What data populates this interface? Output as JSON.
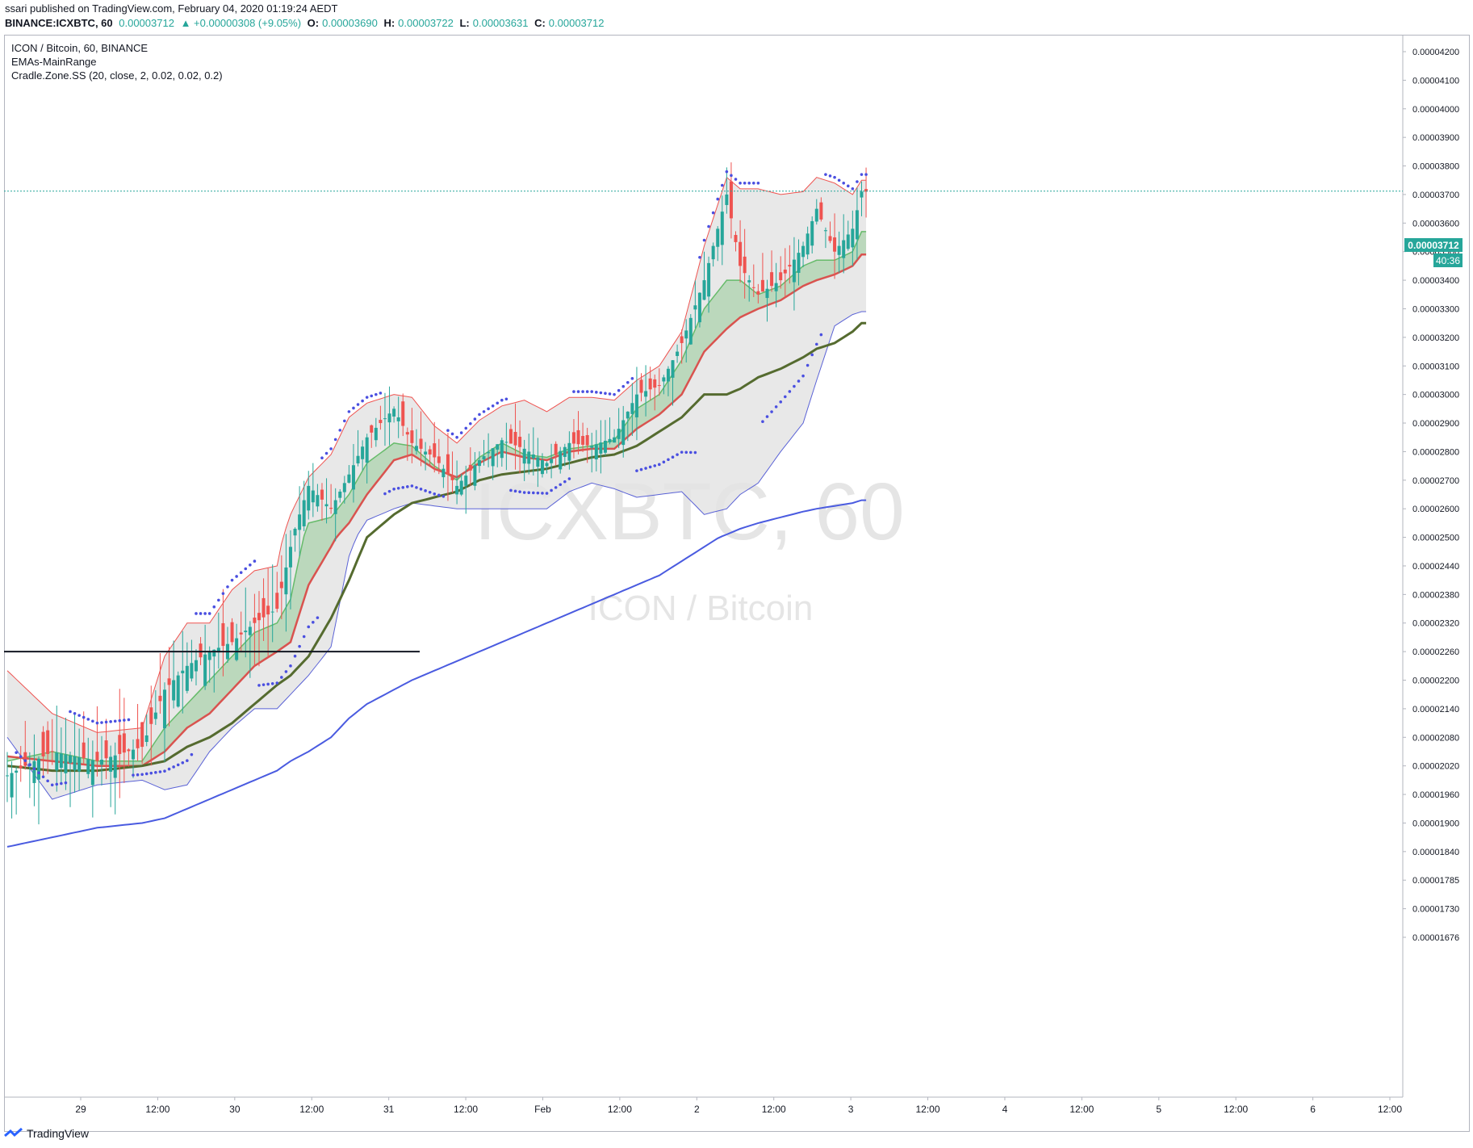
{
  "header": {
    "published": "ssari published on TradingView.com, February 04, 2020 01:19:24 AEDT",
    "symbol": "BINANCE:ICXBTC, 60",
    "last": "0.00003712",
    "change": "▲ +0.00000308 (+9.05%)",
    "o_label": "O:",
    "o": "0.00003690",
    "h_label": "H:",
    "h": "0.00003722",
    "l_label": "L:",
    "l": "0.00003631",
    "c_label": "C:",
    "c": "0.00003712"
  },
  "legend": {
    "title": "ICON / Bitcoin, 60, BINANCE",
    "indicator1": "EMAs-MainRange",
    "indicator2": "Cradle.Zone.SS (20, close, 2, 0.02, 0.02, 0.2)"
  },
  "watermark": {
    "symbol": "ICXBTC, 60",
    "name": "ICON / Bitcoin"
  },
  "price_badge": {
    "value": "0.00003712",
    "countdown": "40:36"
  },
  "brand": "TradingView",
  "colors": {
    "up": "#26a69a",
    "down": "#ef5350",
    "band_fill": "#e4e4e4",
    "band_upper": "#ef5350",
    "band_lower": "#5a62d6",
    "ema_fast": "#66bb6a",
    "ema_mid": "#d9534f",
    "ema_slow": "#556b2f",
    "ema_long": "#4a5be0",
    "psar": "#4a4fe0",
    "accent": "#26a69a"
  },
  "chart_data": {
    "type": "candlestick",
    "title": "ICON / Bitcoin, 60, BINANCE",
    "price_axis_ticks": [
      "0.00004200",
      "0.00004100",
      "0.00004000",
      "0.00003900",
      "0.00003800",
      "0.00003700",
      "0.00003600",
      "0.00003500",
      "0.00003400",
      "0.00003300",
      "0.00003200",
      "0.00003100",
      "0.00003000",
      "0.00002900",
      "0.00002800",
      "0.00002700",
      "0.00002600",
      "0.00002500",
      "0.00002440",
      "0.00002380",
      "0.00002320",
      "0.00002260",
      "0.00002200",
      "0.00002140",
      "0.00002080",
      "0.00002020",
      "0.00001960",
      "0.00001900",
      "0.00001840",
      "0.00001785",
      "0.00001730",
      "0.00001676"
    ],
    "time_axis_ticks": [
      "29",
      "12:00",
      "30",
      "12:00",
      "31",
      "12:00",
      "Feb",
      "12:00",
      "2",
      "12:00",
      "3",
      "12:00",
      "4",
      "12:00",
      "5",
      "12:00",
      "6",
      "12:00"
    ],
    "horizontal_line": 2.26e-05,
    "last_price": 3.712e-05,
    "anchors": {
      "candles": [
        [
          0,
          2e-05
        ],
        [
          10,
          2.05e-05
        ],
        [
          20,
          2.03e-05
        ],
        [
          30,
          2.06e-05
        ],
        [
          35,
          2.18e-05
        ],
        [
          40,
          2.23e-05
        ],
        [
          45,
          2.26e-05
        ],
        [
          50,
          2.28e-05
        ],
        [
          55,
          2.32e-05
        ],
        [
          60,
          2.35e-05
        ],
        [
          63,
          2.48e-05
        ],
        [
          67,
          2.68e-05
        ],
        [
          72,
          2.6e-05
        ],
        [
          76,
          2.72e-05
        ],
        [
          80,
          2.85e-05
        ],
        [
          86,
          2.95e-05
        ],
        [
          90,
          2.83e-05
        ],
        [
          95,
          2.78e-05
        ],
        [
          100,
          2.68e-05
        ],
        [
          105,
          2.77e-05
        ],
        [
          110,
          2.84e-05
        ],
        [
          115,
          2.81e-05
        ],
        [
          120,
          2.76e-05
        ],
        [
          125,
          2.83e-05
        ],
        [
          130,
          2.82e-05
        ],
        [
          135,
          2.85e-05
        ],
        [
          140,
          3e-05
        ],
        [
          145,
          3.03e-05
        ],
        [
          150,
          3.18e-05
        ],
        [
          155,
          3.4e-05
        ],
        [
          160,
          3.7e-05
        ],
        [
          163,
          3.45e-05
        ],
        [
          167,
          3.35e-05
        ],
        [
          172,
          3.4e-05
        ],
        [
          177,
          3.52e-05
        ],
        [
          180,
          3.65e-05
        ],
        [
          184,
          3.5e-05
        ],
        [
          188,
          3.58e-05
        ],
        [
          190,
          3.71e-05
        ]
      ],
      "upper_band": [
        [
          0,
          2.22e-05
        ],
        [
          10,
          2.13e-05
        ],
        [
          20,
          2.09e-05
        ],
        [
          30,
          2.1e-05
        ],
        [
          35,
          2.25e-05
        ],
        [
          40,
          2.32e-05
        ],
        [
          45,
          2.32e-05
        ],
        [
          50,
          2.39e-05
        ],
        [
          55,
          2.43e-05
        ],
        [
          60,
          2.44e-05
        ],
        [
          63,
          2.58e-05
        ],
        [
          67,
          2.71e-05
        ],
        [
          72,
          2.79e-05
        ],
        [
          76,
          2.92e-05
        ],
        [
          80,
          2.97e-05
        ],
        [
          86,
          3e-05
        ],
        [
          90,
          2.99e-05
        ],
        [
          95,
          2.89e-05
        ],
        [
          100,
          2.83e-05
        ],
        [
          105,
          2.91e-05
        ],
        [
          110,
          2.96e-05
        ],
        [
          115,
          2.98e-05
        ],
        [
          120,
          2.94e-05
        ],
        [
          125,
          2.99e-05
        ],
        [
          130,
          2.99e-05
        ],
        [
          135,
          2.98e-05
        ],
        [
          140,
          3.05e-05
        ],
        [
          145,
          3.1e-05
        ],
        [
          150,
          3.22e-05
        ],
        [
          155,
          3.52e-05
        ],
        [
          160,
          3.76e-05
        ],
        [
          163,
          3.72e-05
        ],
        [
          167,
          3.72e-05
        ],
        [
          172,
          3.7e-05
        ],
        [
          177,
          3.71e-05
        ],
        [
          180,
          3.76e-05
        ],
        [
          184,
          3.74e-05
        ],
        [
          188,
          3.7e-05
        ],
        [
          190,
          3.75e-05
        ]
      ],
      "lower_band": [
        [
          0,
          2.08e-05
        ],
        [
          10,
          1.95e-05
        ],
        [
          20,
          1.98e-05
        ],
        [
          30,
          1.99e-05
        ],
        [
          35,
          1.97e-05
        ],
        [
          40,
          1.98e-05
        ],
        [
          45,
          2.05e-05
        ],
        [
          50,
          2.1e-05
        ],
        [
          55,
          2.14e-05
        ],
        [
          60,
          2.14e-05
        ],
        [
          63,
          2.17e-05
        ],
        [
          67,
          2.21e-05
        ],
        [
          72,
          2.27e-05
        ],
        [
          76,
          2.46e-05
        ],
        [
          80,
          2.56e-05
        ],
        [
          86,
          2.6e-05
        ],
        [
          90,
          2.62e-05
        ],
        [
          95,
          2.61e-05
        ],
        [
          100,
          2.6e-05
        ],
        [
          105,
          2.6e-05
        ],
        [
          110,
          2.6e-05
        ],
        [
          115,
          2.6e-05
        ],
        [
          120,
          2.6e-05
        ],
        [
          125,
          2.66e-05
        ],
        [
          130,
          2.69e-05
        ],
        [
          135,
          2.67e-05
        ],
        [
          140,
          2.64e-05
        ],
        [
          145,
          2.65e-05
        ],
        [
          150,
          2.66e-05
        ],
        [
          155,
          2.58e-05
        ],
        [
          160,
          2.6e-05
        ],
        [
          163,
          2.65e-05
        ],
        [
          167,
          2.69e-05
        ],
        [
          172,
          2.8e-05
        ],
        [
          177,
          2.9e-05
        ],
        [
          180,
          3.05e-05
        ],
        [
          184,
          3.24e-05
        ],
        [
          188,
          3.28e-05
        ],
        [
          190,
          3.29e-05
        ]
      ],
      "ema_fast": [
        [
          0,
          2.03e-05
        ],
        [
          10,
          2.05e-05
        ],
        [
          20,
          2.03e-05
        ],
        [
          30,
          2.03e-05
        ],
        [
          35,
          2.1e-05
        ],
        [
          40,
          2.15e-05
        ],
        [
          45,
          2.2e-05
        ],
        [
          50,
          2.25e-05
        ],
        [
          55,
          2.3e-05
        ],
        [
          60,
          2.32e-05
        ],
        [
          63,
          2.37e-05
        ],
        [
          67,
          2.55e-05
        ],
        [
          72,
          2.57e-05
        ],
        [
          76,
          2.65e-05
        ],
        [
          80,
          2.76e-05
        ],
        [
          86,
          2.83e-05
        ],
        [
          90,
          2.82e-05
        ],
        [
          95,
          2.75e-05
        ],
        [
          100,
          2.7e-05
        ],
        [
          105,
          2.78e-05
        ],
        [
          110,
          2.83e-05
        ],
        [
          115,
          2.79e-05
        ],
        [
          120,
          2.78e-05
        ],
        [
          125,
          2.81e-05
        ],
        [
          130,
          2.82e-05
        ],
        [
          135,
          2.84e-05
        ],
        [
          140,
          2.95e-05
        ],
        [
          145,
          3e-05
        ],
        [
          150,
          3.12e-05
        ],
        [
          155,
          3.3e-05
        ],
        [
          160,
          3.4e-05
        ],
        [
          163,
          3.4e-05
        ],
        [
          167,
          3.35e-05
        ],
        [
          172,
          3.38e-05
        ],
        [
          177,
          3.45e-05
        ],
        [
          180,
          3.47e-05
        ],
        [
          184,
          3.47e-05
        ],
        [
          188,
          3.5e-05
        ],
        [
          190,
          3.57e-05
        ]
      ],
      "ema_mid": [
        [
          0,
          2.04e-05
        ],
        [
          10,
          2.03e-05
        ],
        [
          20,
          2.02e-05
        ],
        [
          30,
          2.02e-05
        ],
        [
          35,
          2.05e-05
        ],
        [
          40,
          2.1e-05
        ],
        [
          45,
          2.13e-05
        ],
        [
          50,
          2.18e-05
        ],
        [
          55,
          2.23e-05
        ],
        [
          60,
          2.26e-05
        ],
        [
          63,
          2.28e-05
        ],
        [
          67,
          2.4e-05
        ],
        [
          72,
          2.48e-05
        ],
        [
          76,
          2.55e-05
        ],
        [
          80,
          2.65e-05
        ],
        [
          86,
          2.77e-05
        ],
        [
          90,
          2.79e-05
        ],
        [
          95,
          2.74e-05
        ],
        [
          100,
          2.71e-05
        ],
        [
          105,
          2.76e-05
        ],
        [
          110,
          2.8e-05
        ],
        [
          115,
          2.78e-05
        ],
        [
          120,
          2.77e-05
        ],
        [
          125,
          2.8e-05
        ],
        [
          130,
          2.81e-05
        ],
        [
          135,
          2.81e-05
        ],
        [
          140,
          2.88e-05
        ],
        [
          145,
          2.93e-05
        ],
        [
          150,
          3e-05
        ],
        [
          155,
          3.15e-05
        ],
        [
          160,
          3.23e-05
        ],
        [
          163,
          3.27e-05
        ],
        [
          167,
          3.3e-05
        ],
        [
          172,
          3.33e-05
        ],
        [
          177,
          3.38e-05
        ],
        [
          180,
          3.4e-05
        ],
        [
          184,
          3.42e-05
        ],
        [
          188,
          3.45e-05
        ],
        [
          190,
          3.49e-05
        ]
      ],
      "ema_slow": [
        [
          0,
          2.02e-05
        ],
        [
          10,
          2.01e-05
        ],
        [
          20,
          2.01e-05
        ],
        [
          30,
          2.02e-05
        ],
        [
          35,
          2.03e-05
        ],
        [
          40,
          2.06e-05
        ],
        [
          45,
          2.08e-05
        ],
        [
          50,
          2.11e-05
        ],
        [
          55,
          2.15e-05
        ],
        [
          60,
          2.19e-05
        ],
        [
          63,
          2.21e-05
        ],
        [
          67,
          2.25e-05
        ],
        [
          72,
          2.33e-05
        ],
        [
          76,
          2.41e-05
        ],
        [
          80,
          2.5e-05
        ],
        [
          86,
          2.58e-05
        ],
        [
          90,
          2.62e-05
        ],
        [
          95,
          2.64e-05
        ],
        [
          100,
          2.66e-05
        ],
        [
          105,
          2.7e-05
        ],
        [
          110,
          2.72e-05
        ],
        [
          115,
          2.73e-05
        ],
        [
          120,
          2.74e-05
        ],
        [
          125,
          2.76e-05
        ],
        [
          130,
          2.78e-05
        ],
        [
          135,
          2.79e-05
        ],
        [
          140,
          2.82e-05
        ],
        [
          145,
          2.87e-05
        ],
        [
          150,
          2.92e-05
        ],
        [
          155,
          3e-05
        ],
        [
          160,
          3e-05
        ],
        [
          163,
          3.02e-05
        ],
        [
          167,
          3.06e-05
        ],
        [
          172,
          3.09e-05
        ],
        [
          177,
          3.13e-05
        ],
        [
          180,
          3.16e-05
        ],
        [
          184,
          3.18e-05
        ],
        [
          188,
          3.22e-05
        ],
        [
          190,
          3.25e-05
        ]
      ],
      "ema_long": [
        [
          0,
          1.85e-05
        ],
        [
          10,
          1.87e-05
        ],
        [
          20,
          1.89e-05
        ],
        [
          30,
          1.9e-05
        ],
        [
          35,
          1.91e-05
        ],
        [
          40,
          1.93e-05
        ],
        [
          45,
          1.95e-05
        ],
        [
          50,
          1.97e-05
        ],
        [
          55,
          1.99e-05
        ],
        [
          60,
          2.01e-05
        ],
        [
          63,
          2.03e-05
        ],
        [
          67,
          2.05e-05
        ],
        [
          72,
          2.08e-05
        ],
        [
          76,
          2.12e-05
        ],
        [
          80,
          2.15e-05
        ],
        [
          86,
          2.18e-05
        ],
        [
          90,
          2.2e-05
        ],
        [
          95,
          2.22e-05
        ],
        [
          100,
          2.24e-05
        ],
        [
          105,
          2.26e-05
        ],
        [
          110,
          2.28e-05
        ],
        [
          115,
          2.3e-05
        ],
        [
          120,
          2.32e-05
        ],
        [
          125,
          2.34e-05
        ],
        [
          130,
          2.36e-05
        ],
        [
          135,
          2.38e-05
        ],
        [
          140,
          2.4e-05
        ],
        [
          145,
          2.42e-05
        ],
        [
          150,
          2.45e-05
        ],
        [
          155,
          2.48e-05
        ],
        [
          160,
          2.51e-05
        ],
        [
          163,
          2.53e-05
        ],
        [
          167,
          2.55e-05
        ],
        [
          172,
          2.57e-05
        ],
        [
          177,
          2.59e-05
        ],
        [
          180,
          2.6e-05
        ],
        [
          184,
          2.61e-05
        ],
        [
          188,
          2.62e-05
        ],
        [
          190,
          2.63e-05
        ]
      ]
    }
  }
}
